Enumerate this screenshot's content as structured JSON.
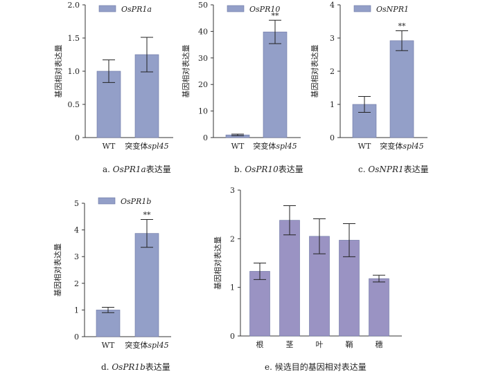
{
  "chart_data": [
    {
      "id": "a",
      "type": "bar",
      "legend": "OsPR1a",
      "ylabel": "基因相对表达量",
      "caption": {
        "letter": "a.",
        "gene": "OsPR1a",
        "suffix": "表达量"
      },
      "categories": [
        {
          "text": "WT",
          "italic": ""
        },
        {
          "text": "突变体",
          "italic": "spl45"
        }
      ],
      "values": [
        1.0,
        1.25
      ],
      "errors": [
        0.17,
        0.26
      ],
      "significance": [
        "",
        ""
      ],
      "ylim": [
        0,
        2.0
      ],
      "yticks": [
        "0",
        "0.5",
        "1.0",
        "1.5",
        "2.0"
      ],
      "color": "#939fc8"
    },
    {
      "id": "b",
      "type": "bar",
      "legend": "OsPR10",
      "ylabel": "基因相对表达量",
      "caption": {
        "letter": "b.",
        "gene": "OsPR10",
        "suffix": "表达量"
      },
      "categories": [
        {
          "text": "WT",
          "italic": ""
        },
        {
          "text": "突变体",
          "italic": "spl45"
        }
      ],
      "values": [
        1.0,
        39.8
      ],
      "errors": [
        0.3,
        4.4
      ],
      "significance": [
        "",
        "**"
      ],
      "ylim": [
        0,
        50
      ],
      "yticks": [
        "0",
        "10",
        "20",
        "30",
        "40",
        "50"
      ],
      "color": "#939fc8"
    },
    {
      "id": "c",
      "type": "bar",
      "legend": "OsNPR1",
      "ylabel": "基因相对表达量",
      "caption": {
        "letter": "c.",
        "gene": "OsNPR1",
        "suffix": "表达量"
      },
      "categories": [
        {
          "text": "WT",
          "italic": ""
        },
        {
          "text": "突变体",
          "italic": "spl45"
        }
      ],
      "values": [
        1.0,
        2.92
      ],
      "errors": [
        0.24,
        0.3
      ],
      "significance": [
        "",
        "**"
      ],
      "ylim": [
        0,
        4
      ],
      "yticks": [
        "0",
        "1",
        "2",
        "3",
        "4"
      ],
      "color": "#939fc8"
    },
    {
      "id": "d",
      "type": "bar",
      "legend": "OsPR1b",
      "ylabel": "基因相对表达量",
      "caption": {
        "letter": "d.",
        "gene": "OsPR1b",
        "suffix": "表达量"
      },
      "categories": [
        {
          "text": "WT",
          "italic": ""
        },
        {
          "text": "突变体",
          "italic": "spl45"
        }
      ],
      "values": [
        1.0,
        3.87
      ],
      "errors": [
        0.1,
        0.52
      ],
      "significance": [
        "",
        "**"
      ],
      "ylim": [
        0,
        5
      ],
      "yticks": [
        "0",
        "1",
        "2",
        "3",
        "4",
        "5"
      ],
      "color": "#939fc8"
    },
    {
      "id": "e",
      "type": "bar",
      "legend": "",
      "ylabel": "基因相对表达量",
      "caption": {
        "letter": "e.",
        "gene": "",
        "suffix": "候选目的基因相对表达量"
      },
      "categories": [
        {
          "text": "根",
          "italic": ""
        },
        {
          "text": "茎",
          "italic": ""
        },
        {
          "text": "叶",
          "italic": ""
        },
        {
          "text": "鞘",
          "italic": ""
        },
        {
          "text": "穗",
          "italic": ""
        }
      ],
      "values": [
        1.33,
        2.38,
        2.05,
        1.97,
        1.18
      ],
      "errors": [
        0.17,
        0.3,
        0.36,
        0.34,
        0.07
      ],
      "significance": [
        "",
        "",
        "",
        "",
        ""
      ],
      "ylim": [
        0,
        3
      ],
      "yticks": [
        "0",
        "1",
        "2",
        "3"
      ],
      "color": "#9a93c3"
    }
  ]
}
